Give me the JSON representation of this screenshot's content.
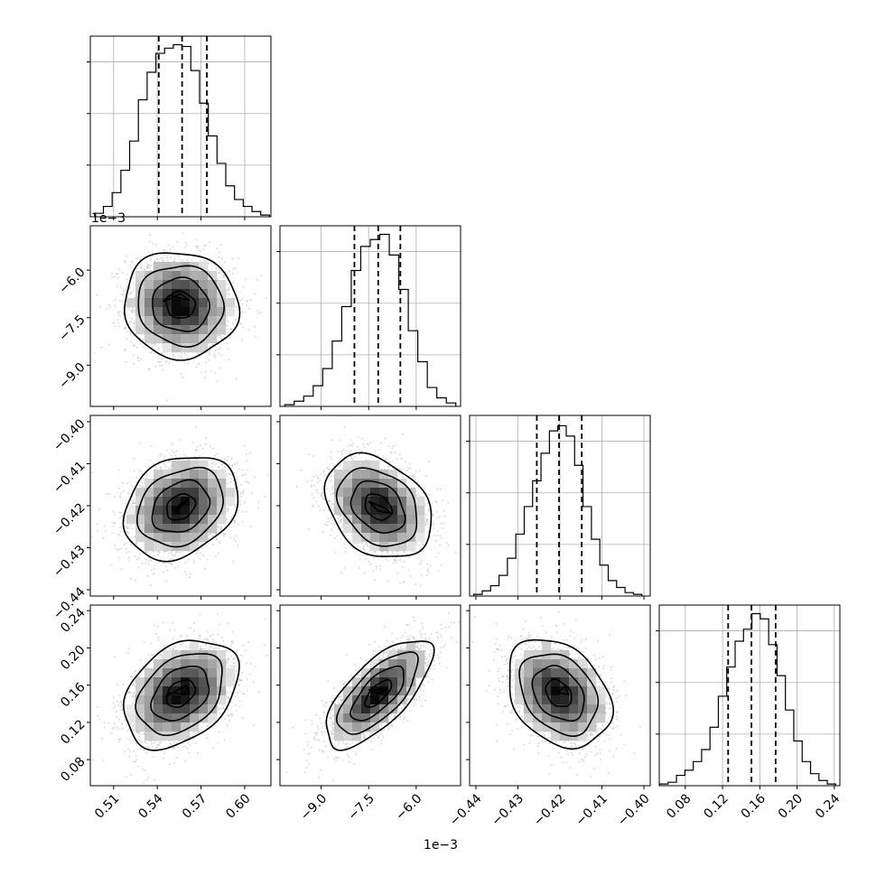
{
  "chart_data": {
    "type": "corner",
    "parameters": [
      {
        "range": [
          0.494,
          0.618
        ],
        "ticks": [
          0.51,
          0.54,
          0.57,
          0.6
        ],
        "tick_labels": [
          "0.51",
          "0.54",
          "0.57",
          "0.60"
        ],
        "offset_label": "",
        "quantiles": [
          0.541,
          0.557,
          0.574
        ],
        "hist_x": [
          0.5,
          0.506,
          0.512,
          0.518,
          0.524,
          0.53,
          0.536,
          0.542,
          0.548,
          0.554,
          0.56,
          0.566,
          0.572,
          0.578,
          0.584,
          0.59,
          0.596,
          0.602,
          0.608,
          0.614
        ],
        "hist_counts": [
          2,
          6,
          14,
          27,
          44,
          68,
          84,
          95,
          98,
          100,
          99,
          85,
          66,
          47,
          31,
          18,
          10,
          6,
          3,
          1
        ],
        "hist_ylim": [
          0,
          105
        ],
        "hist_ticks": [
          0,
          30,
          60,
          90
        ]
      },
      {
        "range": [
          -10.3,
          -4.6
        ],
        "ticks": [
          -9.0,
          -7.5,
          -6.0
        ],
        "tick_labels": [
          "−9.0",
          "−7.5",
          "−6.0"
        ],
        "offset_label": "1e−3",
        "quantiles": [
          -7.95,
          -7.2,
          -6.5
        ],
        "hist_x": [
          -10.0,
          -9.7,
          -9.4,
          -9.1,
          -8.8,
          -8.5,
          -8.2,
          -7.9,
          -7.6,
          -7.3,
          -7.0,
          -6.7,
          -6.4,
          -6.1,
          -5.8,
          -5.5,
          -5.2,
          -4.9
        ],
        "hist_counts": [
          1,
          3,
          6,
          12,
          22,
          38,
          58,
          79,
          93,
          97,
          100,
          88,
          68,
          44,
          26,
          11,
          5,
          2
        ],
        "hist_ylim": [
          0,
          105
        ],
        "hist_ticks": [
          0,
          30,
          60,
          90
        ]
      },
      {
        "range": [
          -0.4415,
          -0.3985
        ],
        "ticks": [
          -0.44,
          -0.43,
          -0.42,
          -0.41,
          -0.4
        ],
        "tick_labels": [
          "−0.44",
          "−0.43",
          "−0.42",
          "−0.41",
          "−0.40"
        ],
        "offset_label": "",
        "quantiles": [
          -0.4255,
          -0.4202,
          -0.4148
        ],
        "hist_x": [
          -0.4395,
          -0.4375,
          -0.4355,
          -0.4335,
          -0.4315,
          -0.4295,
          -0.4275,
          -0.4255,
          -0.4235,
          -0.4215,
          -0.4195,
          -0.4175,
          -0.4155,
          -0.4135,
          -0.4115,
          -0.4095,
          -0.4075,
          -0.4055,
          -0.4035,
          -0.4015
        ],
        "hist_counts": [
          1,
          3,
          6,
          12,
          22,
          36,
          52,
          67,
          83,
          96,
          99,
          93,
          76,
          52,
          33,
          18,
          9,
          5,
          2,
          1
        ],
        "hist_ylim": [
          0,
          105
        ],
        "hist_ticks": [
          0,
          30,
          60,
          90
        ]
      },
      {
        "range": [
          0.052,
          0.246
        ],
        "ticks": [
          0.08,
          0.12,
          0.16,
          0.2,
          0.24
        ],
        "tick_labels": [
          "0.08",
          "0.12",
          "0.16",
          "0.20",
          "0.24"
        ],
        "offset_label": "",
        "quantiles": [
          0.126,
          0.151,
          0.177
        ],
        "hist_x": [
          0.057,
          0.066,
          0.075,
          0.084,
          0.093,
          0.102,
          0.111,
          0.12,
          0.129,
          0.138,
          0.147,
          0.156,
          0.165,
          0.174,
          0.183,
          0.192,
          0.201,
          0.21,
          0.219,
          0.228,
          0.237
        ],
        "hist_counts": [
          1,
          2,
          6,
          9,
          14,
          21,
          34,
          52,
          69,
          84,
          91,
          100,
          97,
          82,
          64,
          44,
          26,
          14,
          7,
          3,
          1
        ],
        "hist_ylim": [
          0,
          105
        ],
        "hist_ticks": [
          0,
          30,
          60,
          90
        ]
      }
    ],
    "pairs": [
      {
        "col": 0,
        "row": 1,
        "center": [
          0.556,
          -7.1
        ],
        "sigma": [
          0.0175,
          0.75
        ],
        "rho": -0.05,
        "peak": [
          [
            0.548,
            -6.8
          ],
          [
            0.562,
            -6.95
          ],
          [
            0.556,
            -6.75
          ],
          [
            0.544,
            -7.0
          ]
        ]
      },
      {
        "col": 0,
        "row": 2,
        "center": [
          0.556,
          -0.4203
        ],
        "sigma": [
          0.0175,
          0.0055
        ],
        "rho": 0.25,
        "peak": [
          [
            0.552,
            -0.4215
          ],
          [
            0.557,
            -0.42
          ],
          [
            0.561,
            -0.4186
          ],
          [
            0.555,
            -0.4198
          ]
        ]
      },
      {
        "col": 1,
        "row": 2,
        "center": [
          -7.2,
          -0.4203
        ],
        "sigma": [
          0.75,
          0.0055
        ],
        "rho": -0.3,
        "peak": [
          [
            -7.5,
            -0.419
          ],
          [
            -7.0,
            -0.4205
          ],
          [
            -6.8,
            -0.4218
          ],
          [
            -7.2,
            -0.4212
          ]
        ]
      },
      {
        "col": 0,
        "row": 3,
        "center": [
          0.556,
          0.151
        ],
        "sigma": [
          0.0175,
          0.026
        ],
        "rho": 0.35,
        "peak": [
          [
            0.546,
            0.148
          ],
          [
            0.552,
            0.153
          ],
          [
            0.56,
            0.16
          ],
          [
            0.562,
            0.15
          ],
          [
            0.548,
            0.152
          ]
        ]
      },
      {
        "col": 1,
        "row": 3,
        "center": [
          -7.2,
          0.151
        ],
        "sigma": [
          0.75,
          0.026
        ],
        "rho": 0.7,
        "peak": [
          [
            -7.5,
            0.155
          ],
          [
            -7.2,
            0.151
          ],
          [
            -6.9,
            0.156
          ]
        ]
      },
      {
        "col": 2,
        "row": 3,
        "center": [
          -0.4203,
          0.151
        ],
        "sigma": [
          0.0055,
          0.026
        ],
        "rho": -0.3,
        "peak": [
          [
            -0.4205,
            0.152
          ],
          [
            -0.4188,
            0.159
          ],
          [
            -0.418,
            0.15
          ]
        ]
      }
    ],
    "contour_levels": [
      0.5,
      1.0,
      1.5,
      2.0
    ],
    "grid": true
  }
}
